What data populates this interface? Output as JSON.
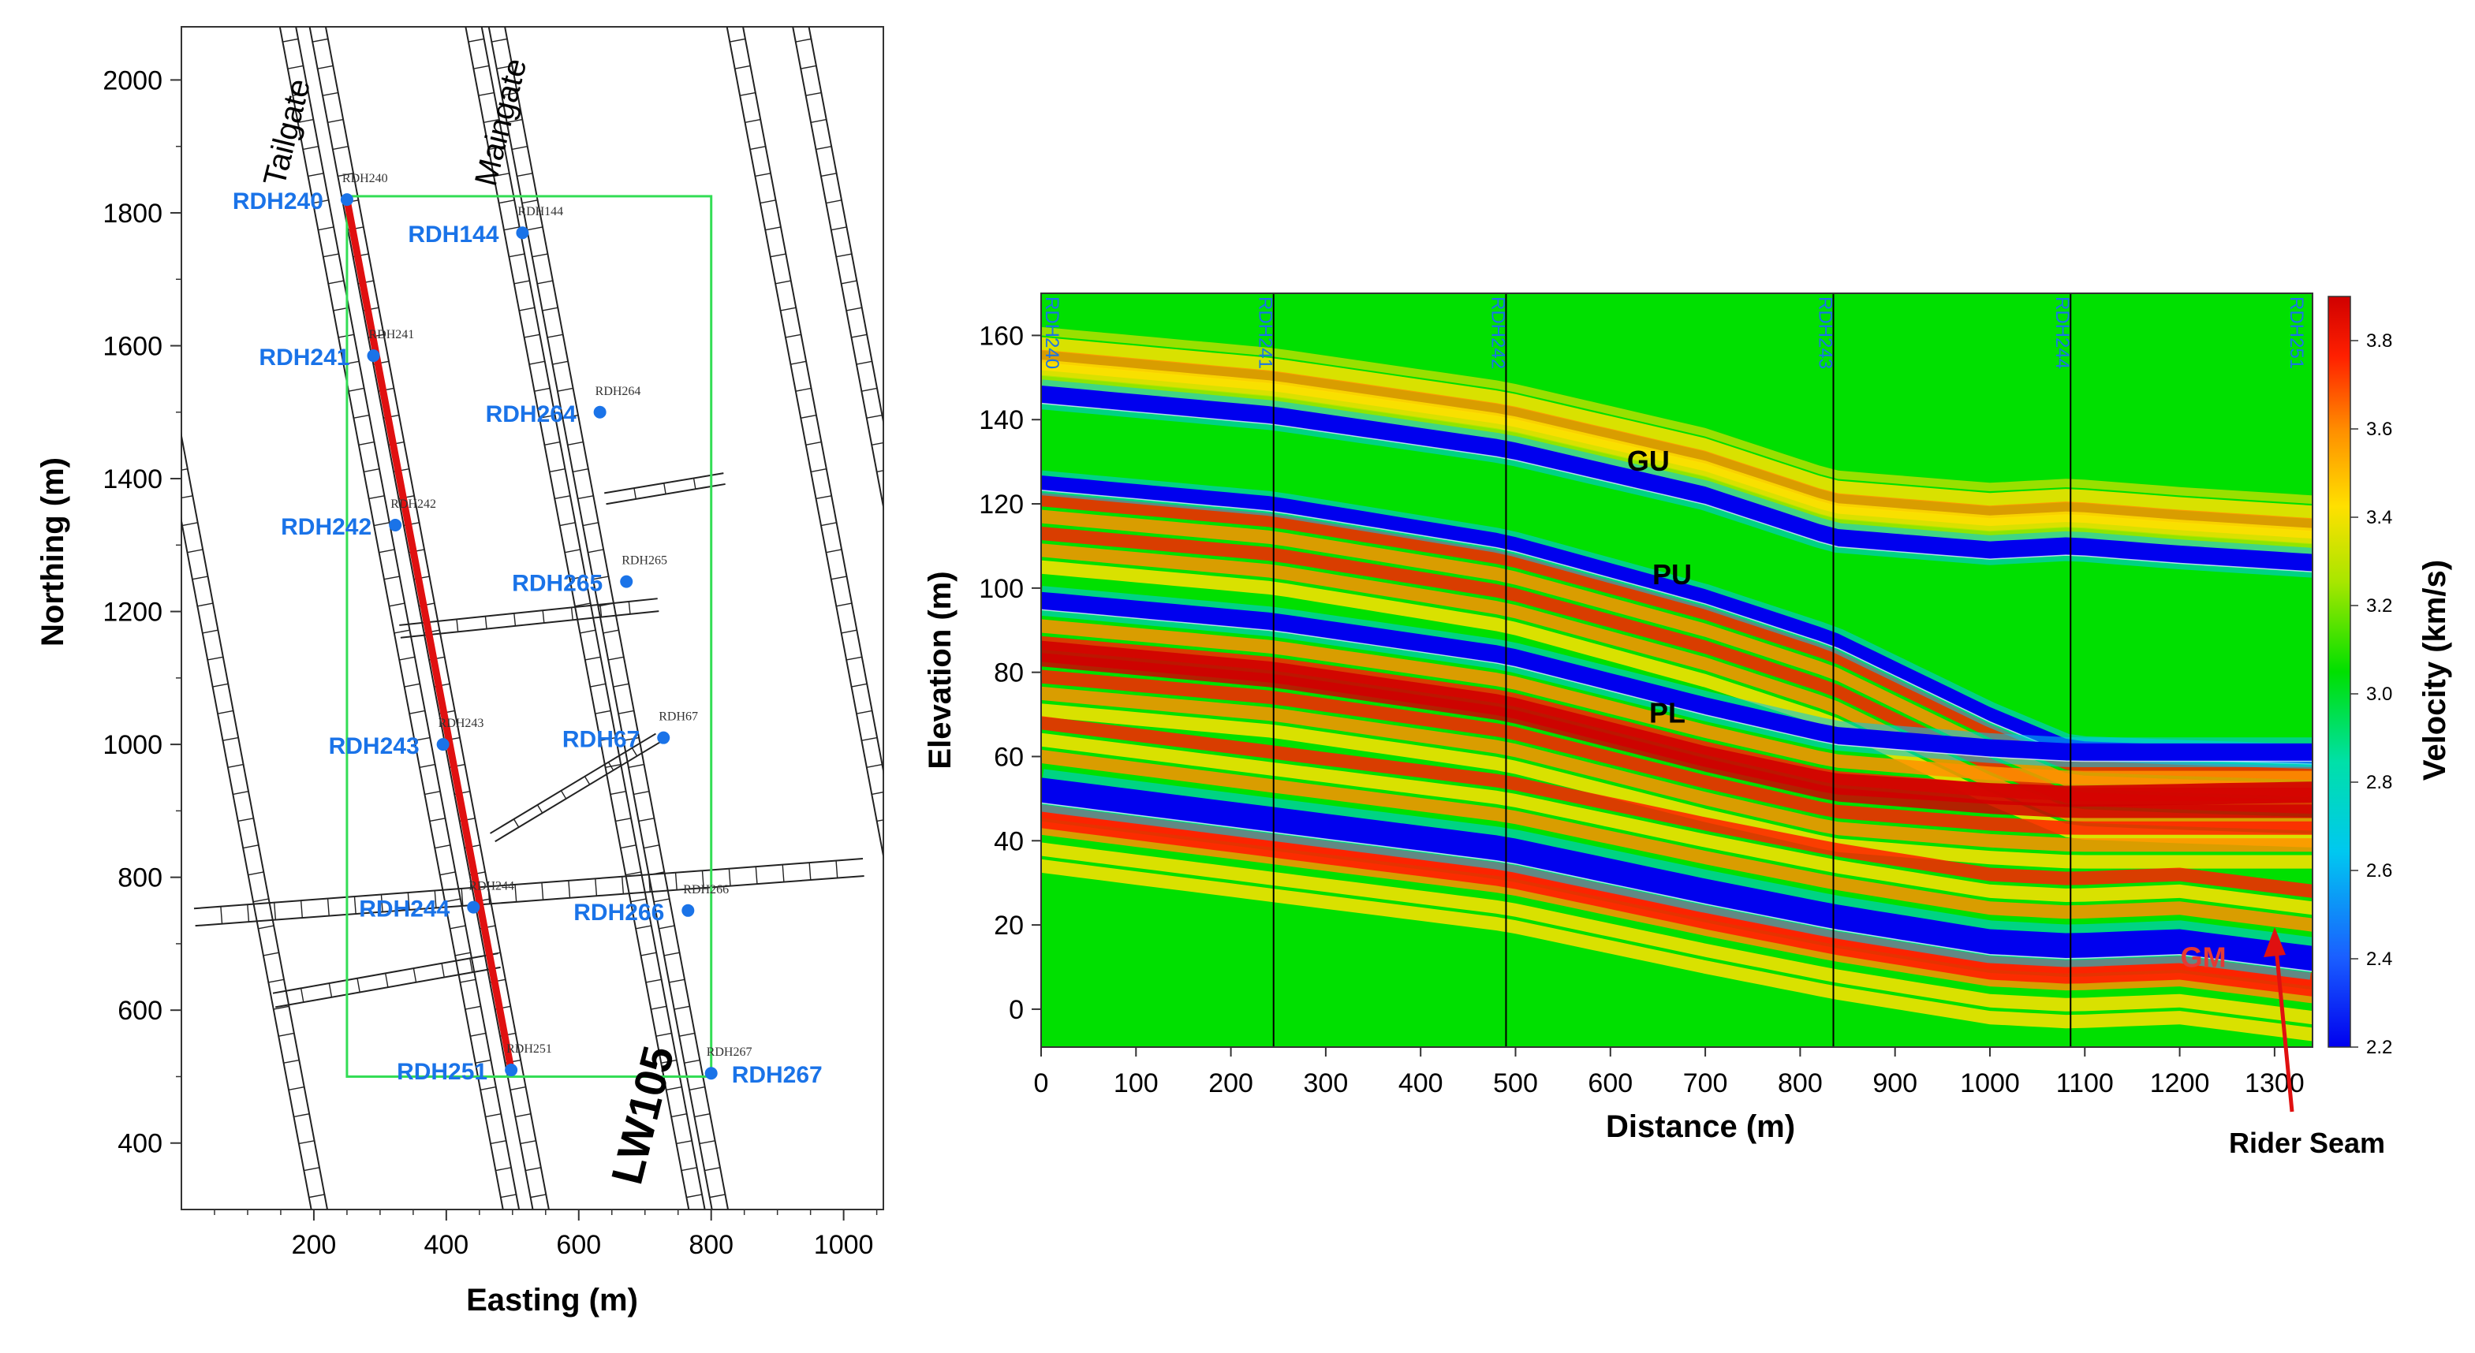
{
  "chart_data": [
    {
      "type": "map",
      "xlabel": "Easting (m)",
      "ylabel": "Northing (m)",
      "xlim": [
        0,
        1060
      ],
      "ylim": [
        300,
        2080
      ],
      "xticks": [
        "200",
        "400",
        "600",
        "800",
        "1000"
      ],
      "yticks": [
        "400",
        "600",
        "800",
        "1000",
        "1200",
        "1400",
        "1600",
        "1800",
        "2000"
      ],
      "gate_labels": [
        "Tailgate",
        "Maingate"
      ],
      "panel_label": "LW105",
      "panel_outline": {
        "easting": [
          250,
          800
        ],
        "northing": [
          500,
          1825
        ],
        "color": "#33dd55"
      },
      "survey_line": {
        "from": "RDH240",
        "to": "RDH251",
        "color": "#e01010"
      },
      "boreholes": [
        {
          "name": "RDH240",
          "small_label": "RDH240",
          "easting": 250,
          "northing": 1820
        },
        {
          "name": "RDH144",
          "small_label": "RDH144",
          "easting": 515,
          "northing": 1770
        },
        {
          "name": "RDH241",
          "small_label": "RDH241",
          "easting": 290,
          "northing": 1585
        },
        {
          "name": "RDH264",
          "small_label": "RDH264",
          "easting": 632,
          "northing": 1500
        },
        {
          "name": "RDH242",
          "small_label": "RDH242",
          "easting": 323,
          "northing": 1330
        },
        {
          "name": "RDH265",
          "small_label": "RDH265",
          "easting": 672,
          "northing": 1245
        },
        {
          "name": "RDH243",
          "small_label": "RDH243",
          "easting": 395,
          "northing": 1000
        },
        {
          "name": "RDH67",
          "small_label": "RDH67",
          "easting": 728,
          "northing": 1010
        },
        {
          "name": "RDH244",
          "small_label": "RDH244",
          "easting": 441,
          "northing": 755
        },
        {
          "name": "RDH266",
          "small_label": "RDH266",
          "easting": 765,
          "northing": 750
        },
        {
          "name": "RDH251",
          "small_label": "RDH251",
          "easting": 498,
          "northing": 510
        },
        {
          "name": "RDH267",
          "small_label": "RDH267",
          "easting": 800,
          "northing": 505
        }
      ]
    },
    {
      "type": "heatmap",
      "xlabel": "Distance (m)",
      "ylabel": "Elevation (m)",
      "colorbar_label": "Velocity (km/s)",
      "xlim": [
        0,
        1340
      ],
      "ylim": [
        -9,
        170
      ],
      "clim": [
        2.2,
        3.9
      ],
      "xticks": [
        "0",
        "100",
        "200",
        "300",
        "400",
        "500",
        "600",
        "700",
        "800",
        "900",
        "1000",
        "1100",
        "1200",
        "1300"
      ],
      "yticks": [
        "0",
        "20",
        "40",
        "60",
        "80",
        "100",
        "120",
        "140",
        "160"
      ],
      "cbar_ticks": [
        "2.2",
        "2.4",
        "2.6",
        "2.8",
        "3.0",
        "3.2",
        "3.4",
        "3.6",
        "3.8"
      ],
      "colormap": [
        "#0000ee",
        "#1a5fff",
        "#00c8f0",
        "#00e0a8",
        "#00e000",
        "#a8e600",
        "#ffe000",
        "#ff9000",
        "#ff2000",
        "#d00000"
      ],
      "background_color": "#00e000",
      "boreholes": [
        {
          "name": "RDH240",
          "distance": 0
        },
        {
          "name": "RDH241",
          "distance": 245
        },
        {
          "name": "RDH242",
          "distance": 490
        },
        {
          "name": "RDH243",
          "distance": 835
        },
        {
          "name": "RDH244",
          "distance": 1085
        },
        {
          "name": "RDH251",
          "distance": 1320
        }
      ],
      "horizons": [
        {
          "label": "GU",
          "label_color": "#000000",
          "distance": [
            0,
            245,
            490,
            700,
            835,
            1000,
            1085,
            1200,
            1340
          ],
          "elevation": [
            146,
            141,
            133,
            122,
            112,
            109,
            110,
            108,
            106
          ]
        },
        {
          "label": "PU",
          "label_color": "#000000",
          "distance": [
            0,
            245,
            490,
            700,
            835,
            1000,
            1085,
            1200,
            1340
          ],
          "elevation": [
            125,
            120,
            111,
            98,
            88,
            70,
            62,
            61,
            60
          ]
        },
        {
          "label": "PL",
          "label_color": "#000000",
          "distance": [
            0,
            245,
            490,
            700,
            835,
            1000,
            1085,
            1200,
            1340
          ],
          "elevation": [
            97,
            92,
            84,
            72,
            65,
            62,
            61,
            61,
            61
          ]
        },
        {
          "label": "GM",
          "label_color": "#e53935",
          "distance": [
            0,
            245,
            490,
            700,
            835,
            1000,
            1085,
            1200,
            1340
          ],
          "elevation": [
            52,
            45,
            38,
            28,
            22,
            16,
            15,
            16,
            12
          ]
        }
      ],
      "annotation": {
        "text": "Rider Seam",
        "arrow_color": "#e01010"
      }
    }
  ]
}
